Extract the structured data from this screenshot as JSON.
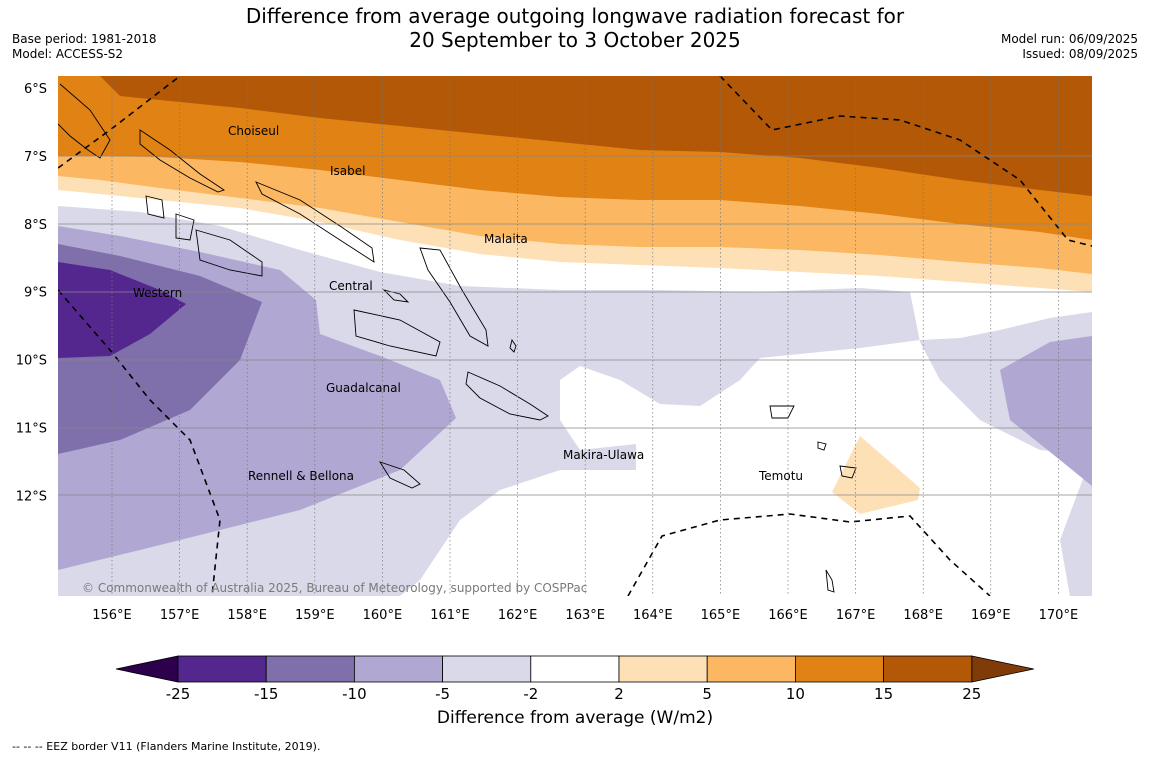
{
  "header": {
    "title_line1": "Difference from average outgoing longwave radiation forecast for",
    "title_line2": "20 September to 3 October 2025",
    "base_period": "Base period: 1981-2018",
    "model": "Model: ACCESS-S2",
    "model_run": "Model run: 06/09/2025",
    "issued": "Issued: 08/09/2025"
  },
  "map": {
    "lat_labels": [
      "6°S",
      "7°S",
      "8°S",
      "9°S",
      "10°S",
      "11°S",
      "12°S"
    ],
    "lon_labels": [
      "156°E",
      "157°E",
      "158°E",
      "159°E",
      "160°E",
      "161°E",
      "162°E",
      "163°E",
      "164°E",
      "165°E",
      "166°E",
      "167°E",
      "168°E",
      "169°E",
      "170°E"
    ],
    "province_labels": {
      "choiseul": "Choiseul",
      "isabel": "Isabel",
      "malaita": "Malaita",
      "western": "Western",
      "central": "Central",
      "guadalcanal": "Guadalcanal",
      "makira": "Makira-Ulawa",
      "rennell": "Rennell & Bellona",
      "temotu": "Temotu"
    },
    "copyright": "© Commonwealth of Australia 2025, Bureau of Meteorology, supported by COSPPac"
  },
  "colorbar": {
    "ticks": [
      "-25",
      "-15",
      "-10",
      "-5",
      "-2",
      "2",
      "5",
      "10",
      "15",
      "25"
    ],
    "colors": [
      "#54278f",
      "#7f6fab",
      "#b0a8d2",
      "#d9d9ea",
      "#ffffff",
      "#fee0b6",
      "#fbb761",
      "#e08214",
      "#b35806"
    ],
    "low_extend_color": "#2d004b",
    "high_extend_color": "#7f3b08",
    "title": "Difference from average (W/m2)"
  },
  "footer": {
    "eez_note": "--  --  -- EEZ border V11 (Flanders Marine Institute, 2019)."
  }
}
